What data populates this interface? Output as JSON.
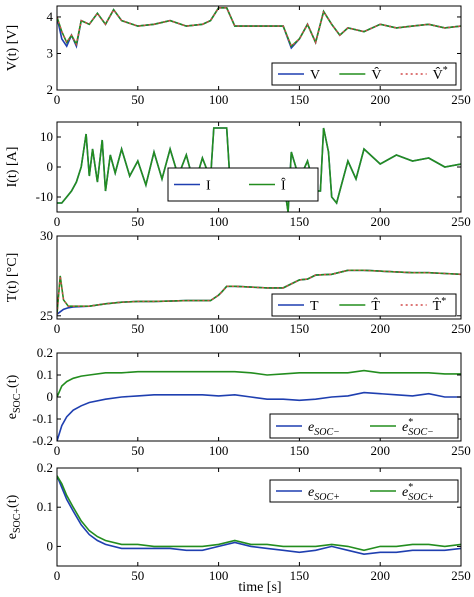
{
  "figure": {
    "xlabel": "time [s]"
  },
  "chart_data": [
    {
      "type": "line",
      "ylabel": "V(t) [V]",
      "xlim": [
        0,
        250
      ],
      "ylim": [
        2,
        4.3
      ],
      "xticks": [
        "0",
        "50",
        "100",
        "150",
        "200",
        "250"
      ],
      "yticks": [
        "2",
        "3",
        "4"
      ],
      "grid": false,
      "legend": "bottom-right",
      "x": [
        0,
        3,
        6,
        9,
        12,
        15,
        20,
        25,
        30,
        35,
        40,
        50,
        60,
        70,
        80,
        90,
        95,
        100,
        105,
        110,
        120,
        130,
        140,
        145,
        150,
        155,
        160,
        165,
        170,
        175,
        180,
        190,
        200,
        210,
        220,
        230,
        240,
        250
      ],
      "series": [
        {
          "name": "V",
          "values": [
            4.0,
            3.4,
            3.2,
            3.5,
            3.2,
            3.9,
            3.8,
            4.1,
            3.8,
            4.2,
            3.9,
            3.75,
            3.8,
            3.9,
            3.75,
            3.8,
            3.9,
            4.25,
            4.25,
            3.75,
            3.75,
            3.75,
            3.75,
            3.15,
            3.4,
            3.8,
            3.3,
            4.15,
            3.8,
            3.5,
            3.7,
            3.6,
            3.8,
            3.7,
            3.75,
            3.8,
            3.7,
            3.75
          ]
        },
        {
          "name": "V̂",
          "values": [
            4.0,
            3.6,
            3.3,
            3.5,
            3.25,
            3.9,
            3.8,
            4.1,
            3.8,
            4.2,
            3.9,
            3.75,
            3.8,
            3.9,
            3.75,
            3.8,
            3.9,
            4.25,
            4.25,
            3.75,
            3.75,
            3.75,
            3.75,
            3.2,
            3.4,
            3.8,
            3.3,
            4.15,
            3.8,
            3.5,
            3.7,
            3.6,
            3.8,
            3.7,
            3.75,
            3.8,
            3.7,
            3.75
          ]
        },
        {
          "name": "V̂*",
          "values": [
            4.0,
            3.6,
            3.3,
            3.5,
            3.25,
            3.9,
            3.8,
            4.1,
            3.8,
            4.2,
            3.9,
            3.75,
            3.8,
            3.9,
            3.75,
            3.8,
            3.9,
            4.25,
            4.25,
            3.75,
            3.75,
            3.75,
            3.75,
            3.2,
            3.4,
            3.8,
            3.3,
            4.15,
            3.8,
            3.5,
            3.7,
            3.6,
            3.8,
            3.7,
            3.75,
            3.8,
            3.7,
            3.75
          ]
        }
      ]
    },
    {
      "type": "line",
      "ylabel": "I(t) [A]",
      "xlim": [
        0,
        250
      ],
      "ylim": [
        -15,
        15
      ],
      "xticks": [
        "0",
        "50",
        "100",
        "150",
        "200",
        "250"
      ],
      "yticks": [
        "-10",
        "0",
        "10"
      ],
      "grid": false,
      "legend": "bottom-right",
      "x": [
        0,
        3,
        6,
        9,
        12,
        15,
        18,
        20,
        22,
        25,
        28,
        30,
        33,
        36,
        40,
        45,
        50,
        55,
        60,
        65,
        70,
        75,
        80,
        85,
        90,
        95,
        97,
        100,
        105,
        107,
        110,
        120,
        130,
        140,
        143,
        145,
        150,
        155,
        160,
        163,
        165,
        168,
        170,
        173,
        175,
        180,
        185,
        190,
        200,
        210,
        220,
        230,
        240,
        250
      ],
      "series": [
        {
          "name": "I",
          "values": [
            -12,
            -12,
            -10,
            -8,
            -5,
            0,
            11,
            -3,
            6,
            -5,
            9,
            -8,
            4,
            -2,
            6,
            -3,
            2,
            -6,
            5,
            -4,
            6,
            -3,
            4,
            -6,
            3,
            -4,
            13,
            13,
            13,
            -4,
            -4,
            -4,
            -4,
            -4,
            -15,
            5,
            -4,
            2,
            -8,
            -8,
            13,
            5,
            -10,
            -12,
            -8,
            2,
            -4,
            6,
            1,
            4,
            2,
            3,
            0,
            1
          ]
        },
        {
          "name": "Î",
          "values": [
            -12,
            -12,
            -10,
            -8,
            -5,
            0,
            11,
            -3,
            6,
            -5,
            9,
            -8,
            4,
            -2,
            6,
            -3,
            2,
            -6,
            5,
            -4,
            6,
            -3,
            4,
            -6,
            3,
            -4,
            13,
            13,
            13,
            -4,
            -4,
            -4,
            -4,
            -4,
            -15,
            5,
            -4,
            2,
            -8,
            -8,
            13,
            5,
            -10,
            -12,
            -8,
            2,
            -4,
            6,
            1,
            4,
            2,
            3,
            0,
            1
          ]
        }
      ]
    },
    {
      "type": "line",
      "ylabel": "T(t) [°C]",
      "xlim": [
        0,
        250
      ],
      "ylim": [
        24.8,
        30
      ],
      "xticks": [
        "0",
        "50",
        "100",
        "150",
        "200",
        "250"
      ],
      "yticks": [
        "25",
        "30"
      ],
      "grid": false,
      "legend": "bottom-right",
      "x": [
        0,
        2,
        4,
        7,
        10,
        20,
        30,
        40,
        50,
        60,
        70,
        80,
        90,
        95,
        100,
        102,
        105,
        110,
        120,
        130,
        140,
        145,
        150,
        155,
        160,
        170,
        180,
        190,
        200,
        210,
        220,
        230,
        240,
        250
      ],
      "series": [
        {
          "name": "T",
          "values": [
            25.1,
            25.25,
            25.4,
            25.5,
            25.55,
            25.6,
            25.75,
            25.85,
            25.9,
            25.9,
            25.92,
            25.95,
            25.95,
            25.95,
            26.3,
            26.5,
            26.85,
            26.85,
            26.8,
            26.75,
            26.75,
            27.0,
            27.25,
            27.3,
            27.55,
            27.6,
            27.85,
            27.85,
            27.8,
            27.75,
            27.7,
            27.7,
            27.65,
            27.6
          ]
        },
        {
          "name": "T̂",
          "values": [
            25.1,
            27.5,
            26.0,
            25.6,
            25.6,
            25.6,
            25.75,
            25.85,
            25.9,
            25.9,
            25.92,
            25.95,
            25.95,
            25.95,
            26.3,
            26.5,
            26.85,
            26.85,
            26.8,
            26.75,
            26.75,
            27.0,
            27.25,
            27.3,
            27.55,
            27.6,
            27.85,
            27.85,
            27.8,
            27.75,
            27.7,
            27.7,
            27.65,
            27.6
          ]
        },
        {
          "name": "T̂*",
          "values": [
            25.1,
            27.5,
            26.0,
            25.6,
            25.6,
            25.6,
            25.75,
            25.85,
            25.9,
            25.9,
            25.92,
            25.95,
            25.95,
            25.95,
            26.3,
            26.5,
            26.85,
            26.85,
            26.8,
            26.75,
            26.75,
            27.0,
            27.25,
            27.3,
            27.55,
            27.6,
            27.85,
            27.85,
            27.8,
            27.75,
            27.7,
            27.7,
            27.65,
            27.6
          ]
        }
      ]
    },
    {
      "type": "line",
      "ylabel": "eSOC−(t)",
      "xlim": [
        0,
        250
      ],
      "ylim": [
        -0.2,
        0.2
      ],
      "xticks": [
        "0",
        "50",
        "100",
        "150",
        "200",
        "250"
      ],
      "yticks": [
        "-0.2",
        "-0.1",
        "0",
        "0.1",
        "0.2"
      ],
      "grid": false,
      "legend": "bottom-right",
      "x": [
        0,
        3,
        6,
        10,
        15,
        20,
        30,
        40,
        50,
        60,
        70,
        80,
        90,
        100,
        110,
        120,
        130,
        140,
        150,
        160,
        170,
        180,
        190,
        200,
        210,
        220,
        230,
        240,
        250
      ],
      "series": [
        {
          "name": "eSOC−",
          "values": [
            -0.2,
            -0.13,
            -0.09,
            -0.06,
            -0.04,
            -0.025,
            -0.01,
            0.0,
            0.005,
            0.01,
            0.01,
            0.01,
            0.01,
            0.005,
            0.01,
            0.0,
            -0.01,
            -0.01,
            -0.015,
            -0.01,
            0.0,
            0.005,
            0.02,
            0.015,
            0.01,
            0.005,
            0.015,
            0.0,
            0.0
          ]
        },
        {
          "name": "e*SOC−",
          "values": [
            0.0,
            0.05,
            0.07,
            0.085,
            0.095,
            0.1,
            0.11,
            0.11,
            0.115,
            0.115,
            0.115,
            0.115,
            0.115,
            0.115,
            0.115,
            0.11,
            0.1,
            0.105,
            0.11,
            0.11,
            0.11,
            0.11,
            0.12,
            0.11,
            0.11,
            0.11,
            0.11,
            0.105,
            0.105
          ]
        }
      ]
    },
    {
      "type": "line",
      "ylabel": "eSOC+(t)",
      "xlim": [
        0,
        250
      ],
      "ylim": [
        -0.05,
        0.2
      ],
      "xticks": [
        "0",
        "50",
        "100",
        "150",
        "200",
        "250"
      ],
      "yticks": [
        "0",
        "0.1",
        "0.2"
      ],
      "grid": false,
      "legend": "top-right",
      "x": [
        0,
        3,
        6,
        10,
        15,
        20,
        25,
        30,
        40,
        50,
        60,
        70,
        80,
        90,
        100,
        110,
        120,
        130,
        140,
        150,
        160,
        170,
        180,
        190,
        200,
        210,
        220,
        230,
        240,
        250
      ],
      "series": [
        {
          "name": "eSOC+",
          "values": [
            0.18,
            0.15,
            0.12,
            0.09,
            0.055,
            0.03,
            0.015,
            0.005,
            -0.005,
            -0.005,
            -0.005,
            -0.005,
            -0.01,
            -0.01,
            0.0,
            0.01,
            0.0,
            -0.005,
            -0.01,
            -0.015,
            -0.01,
            0.0,
            -0.01,
            -0.02,
            -0.015,
            -0.015,
            -0.01,
            -0.01,
            -0.01,
            -0.005
          ]
        },
        {
          "name": "e*SOC+",
          "values": [
            0.18,
            0.16,
            0.13,
            0.1,
            0.065,
            0.04,
            0.025,
            0.015,
            0.005,
            0.005,
            0.0,
            0.0,
            0.0,
            0.0,
            0.005,
            0.015,
            0.005,
            0.005,
            0.0,
            0.0,
            0.0,
            0.005,
            0.0,
            -0.01,
            0.0,
            0.0,
            0.005,
            0.005,
            0.0,
            0.005
          ]
        }
      ]
    }
  ]
}
